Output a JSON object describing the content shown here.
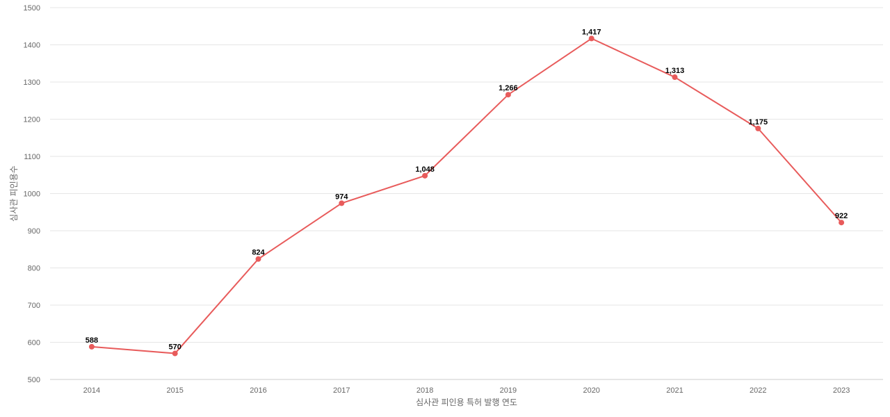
{
  "chart_data": {
    "type": "line",
    "title": "",
    "xlabel": "심사관 피인용 특허 발행 연도",
    "ylabel": "심사관 피인용수",
    "categories": [
      "2014",
      "2015",
      "2016",
      "2017",
      "2018",
      "2019",
      "2020",
      "2021",
      "2022",
      "2023"
    ],
    "series": [
      {
        "values": [
          588,
          570,
          824,
          974,
          1048,
          1266,
          1417,
          1313,
          1175,
          922
        ],
        "labels": [
          "588",
          "570",
          "824",
          "974",
          "1,048",
          "1,266",
          "1,417",
          "1,313",
          "1,175",
          "922"
        ],
        "color": "#e85b5b"
      }
    ],
    "ylim": [
      500,
      1500
    ],
    "yticks": [
      "500",
      "600",
      "700",
      "800",
      "900",
      "1000",
      "1100",
      "1200",
      "1300",
      "1400",
      "1500"
    ],
    "grid": true,
    "legend": "none"
  }
}
